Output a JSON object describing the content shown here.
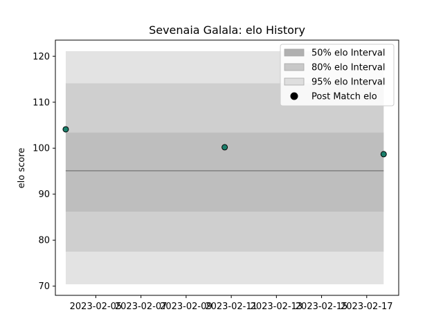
{
  "chart_data": {
    "type": "scatter",
    "title": "Sevenaia Galala: elo History",
    "xlabel": "",
    "ylabel": "elo score",
    "xlim": [
      "2023-02-03T05:00",
      "2023-02-18T10:00"
    ],
    "ylim": [
      68,
      123.5
    ],
    "x_ticks": [
      "2023-02-05",
      "2023-02-07",
      "2023-02-09",
      "2023-02-11",
      "2023-02-13",
      "2023-02-15",
      "2023-02-17"
    ],
    "y_ticks": [
      70,
      80,
      90,
      100,
      110,
      120
    ],
    "band_x_range": [
      "2023-02-03T16:00",
      "2023-02-17T18:00"
    ],
    "bands": [
      {
        "name": "95% elo Interval",
        "low": 70.4,
        "high": 121.1,
        "color": "#e3e3e3"
      },
      {
        "name": "80% elo Interval",
        "low": 77.5,
        "high": 114.1,
        "color": "#cfcfcf"
      },
      {
        "name": "50% elo Interval",
        "low": 86.2,
        "high": 103.4,
        "color": "#bebebe"
      }
    ],
    "mean_line": {
      "value": 95.1,
      "color": "#7f7f7f"
    },
    "series": [
      {
        "name": "Post Match elo",
        "color": "#1b7f6b",
        "points": [
          {
            "x": "2023-02-03T16:00",
            "y": 104.1
          },
          {
            "x": "2023-02-10T17:00",
            "y": 100.2
          },
          {
            "x": "2023-02-17T18:00",
            "y": 98.7
          }
        ]
      }
    ],
    "legend": {
      "position": "top-right",
      "entries": [
        "50% elo Interval",
        "80% elo Interval",
        "95% elo Interval",
        "Post Match elo"
      ]
    },
    "legend_colors": {
      "50% elo Interval": "#b0b0b0",
      "80% elo Interval": "#c8c8c8",
      "95% elo Interval": "#dedede",
      "Post Match elo": "#000000"
    }
  }
}
